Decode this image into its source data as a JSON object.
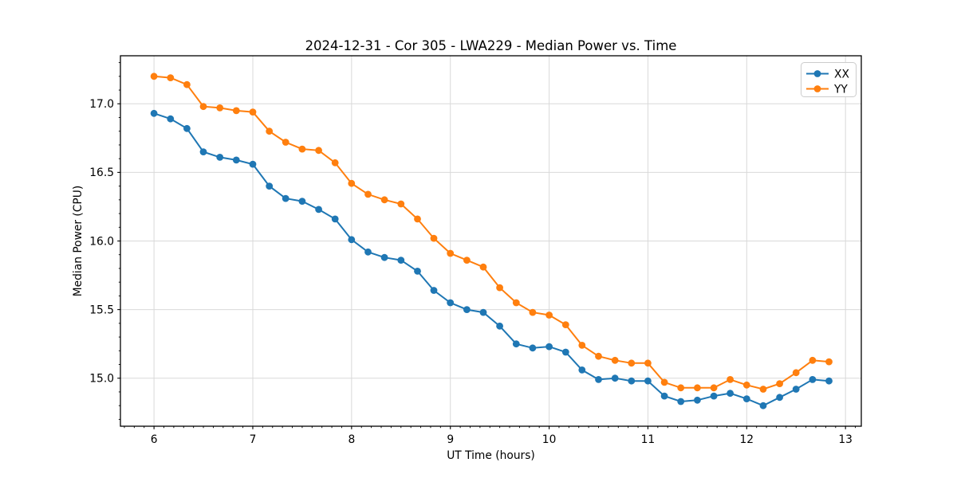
{
  "chart_data": {
    "type": "line",
    "title": "2024-12-31 - Cor 305 - LWA229 - Median Power vs. Time",
    "xlabel": "UT Time (hours)",
    "ylabel": "Median Power (CPU)",
    "x": [
      6.0,
      6.167,
      6.333,
      6.5,
      6.667,
      6.833,
      7.0,
      7.167,
      7.333,
      7.5,
      7.667,
      7.833,
      8.0,
      8.167,
      8.333,
      8.5,
      8.667,
      8.833,
      9.0,
      9.167,
      9.333,
      9.5,
      9.667,
      9.833,
      10.0,
      10.167,
      10.333,
      10.5,
      10.667,
      10.833,
      11.0,
      11.167,
      11.333,
      11.5,
      11.667,
      11.833,
      12.0,
      12.167,
      12.333,
      12.5,
      12.667,
      12.833
    ],
    "series": [
      {
        "name": "XX",
        "color": "#1f77b4",
        "values": [
          16.93,
          16.89,
          16.82,
          16.65,
          16.61,
          16.59,
          16.56,
          16.4,
          16.31,
          16.29,
          16.23,
          16.16,
          16.01,
          15.92,
          15.88,
          15.86,
          15.78,
          15.64,
          15.55,
          15.5,
          15.48,
          15.38,
          15.25,
          15.22,
          15.23,
          15.19,
          15.06,
          14.99,
          15.0,
          14.98,
          14.98,
          14.87,
          14.83,
          14.84,
          14.87,
          14.89,
          14.85,
          14.8,
          14.86,
          14.92,
          14.99,
          14.98
        ]
      },
      {
        "name": "YY",
        "color": "#ff7f0e",
        "values": [
          17.2,
          17.19,
          17.14,
          16.98,
          16.97,
          16.95,
          16.94,
          16.8,
          16.72,
          16.67,
          16.66,
          16.57,
          16.42,
          16.34,
          16.3,
          16.27,
          16.16,
          16.02,
          15.91,
          15.86,
          15.81,
          15.66,
          15.55,
          15.48,
          15.46,
          15.39,
          15.24,
          15.16,
          15.13,
          15.11,
          15.11,
          14.97,
          14.93,
          14.93,
          14.93,
          14.99,
          14.95,
          14.92,
          14.96,
          15.04,
          15.13,
          15.12
        ]
      }
    ],
    "xlim": [
      5.66,
      13.16
    ],
    "ylim": [
      14.65,
      17.35
    ],
    "xticks": [
      6,
      7,
      8,
      9,
      10,
      11,
      12,
      13
    ],
    "yticks": [
      "15.0",
      "15.5",
      "16.0",
      "16.5",
      "17.0"
    ],
    "grid": true,
    "legend": {
      "position": "upper right",
      "entries": [
        "XX",
        "YY"
      ]
    },
    "style": {
      "background": "#ffffff",
      "grid_color": "#d9d9d9",
      "spine_color": "#000000",
      "text_color": "#000000",
      "legend_border": "#cccccc",
      "legend_background": "#ffffff"
    }
  }
}
